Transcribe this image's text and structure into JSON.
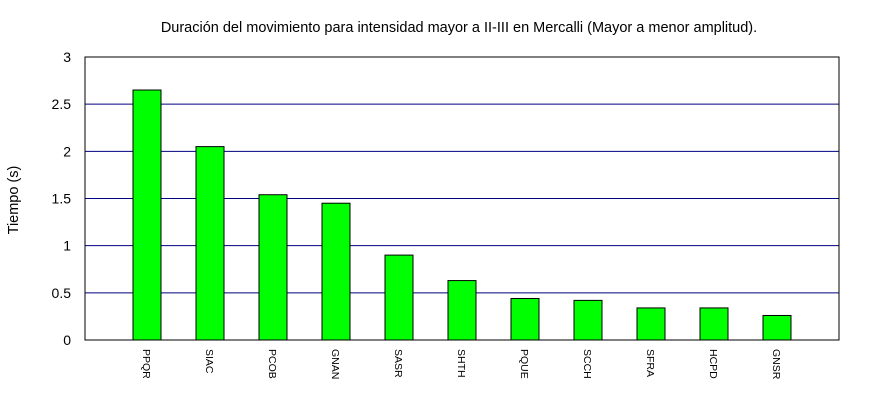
{
  "chart_data": {
    "type": "bar",
    "title": "Duración del movimiento para intensidad mayor a II-III en Mercalli (Mayor a menor amplitud).",
    "xlabel": "",
    "ylabel": "Tiempo (s)",
    "ylim": [
      0,
      3
    ],
    "yticks": [
      "0",
      "0.5",
      "1",
      "1.5",
      "2",
      "2.5",
      "3"
    ],
    "grid": true,
    "categories": [
      "PPQR",
      "SIAC",
      "PCOB",
      "GNAN",
      "SASR",
      "SHTH",
      "PQUE",
      "SCCH",
      "SFRA",
      "HCPD",
      "GNSR"
    ],
    "values": [
      2.65,
      2.05,
      1.54,
      1.45,
      0.9,
      0.63,
      0.44,
      0.42,
      0.34,
      0.34,
      0.26
    ],
    "colors": {
      "bar": "#00ff00",
      "bar_stroke": "#000000",
      "grid": "#000080",
      "frame": "#000000"
    }
  }
}
